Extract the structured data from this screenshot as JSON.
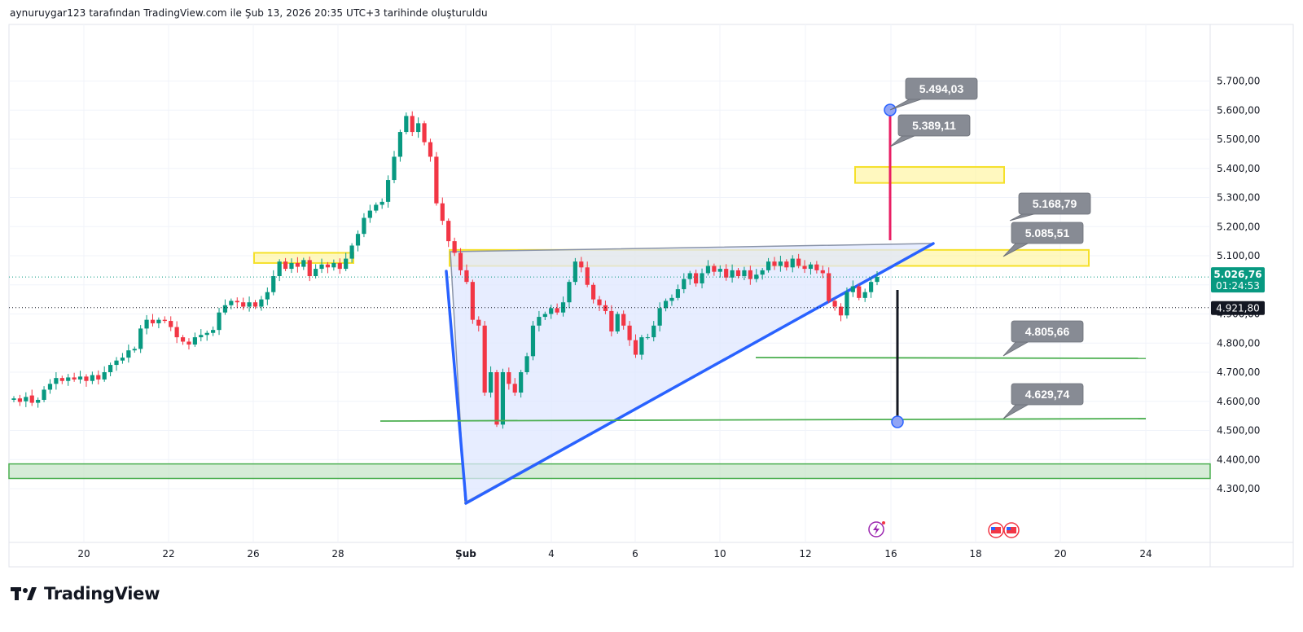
{
  "header": {
    "credit": "aynuruygar123 tarafından TradingView.com ile Şub 13, 2026 20:35 UTC+3 tarihinde oluşturuldu"
  },
  "brand": {
    "name": "TradingView",
    "logo_icon": "tradingview-logo-icon"
  },
  "colors": {
    "up": "#089981",
    "down": "#f23645",
    "trend_blue": "#2962ff",
    "triangle_fill": "#dfe7ff",
    "yellow_zone": "#fff59d",
    "yellow_border": "#f5e02a",
    "green_line": "#4caf50",
    "callout_bg": "#878b94",
    "price_tag": "#089981",
    "prev_close_tag": "#131722",
    "pink_line": "#e91e63"
  },
  "chart_data": {
    "type": "candlestick",
    "title": "",
    "grid": true,
    "x_ticks": [
      "20",
      "22",
      "26",
      "28",
      "Şub",
      "4",
      "6",
      "10",
      "12",
      "16",
      "18",
      "20",
      "24"
    ],
    "y_ticks": [
      "5.700,00",
      "5.600,00",
      "5.500,00",
      "5.400,00",
      "5.300,00",
      "5.200,00",
      "5.100,00",
      "5.000,00",
      "4.900,00",
      "4.800,00",
      "4.700,00",
      "4.600,00",
      "4.500,00",
      "4.400,00",
      "4.300,00"
    ],
    "ylim": [
      4275,
      5750
    ],
    "last_price": {
      "value": 5026.76,
      "label": "5.026,76",
      "countdown": "01:24:53"
    },
    "prev_price": {
      "value": 4921.8,
      "label": "4.921,80"
    },
    "candles_open_close": [
      [
        4605,
        4610
      ],
      [
        4610,
        4598
      ],
      [
        4600,
        4615
      ],
      [
        4620,
        4595
      ],
      [
        4595,
        4605
      ],
      [
        4605,
        4640
      ],
      [
        4640,
        4660
      ],
      [
        4660,
        4680
      ],
      [
        4680,
        4670
      ],
      [
        4670,
        4682
      ],
      [
        4682,
        4675
      ],
      [
        4675,
        4685
      ],
      [
        4685,
        4670
      ],
      [
        4670,
        4690
      ],
      [
        4690,
        4675
      ],
      [
        4675,
        4700
      ],
      [
        4700,
        4725
      ],
      [
        4725,
        4740
      ],
      [
        4740,
        4750
      ],
      [
        4750,
        4775
      ],
      [
        4775,
        4780
      ],
      [
        4780,
        4850
      ],
      [
        4850,
        4880
      ],
      [
        4880,
        4868
      ],
      [
        4868,
        4880
      ],
      [
        4880,
        4876
      ],
      [
        4876,
        4855
      ],
      [
        4855,
        4820
      ],
      [
        4820,
        4805
      ],
      [
        4805,
        4795
      ],
      [
        4795,
        4820
      ],
      [
        4820,
        4828
      ],
      [
        4828,
        4835
      ],
      [
        4835,
        4845
      ],
      [
        4845,
        4905
      ],
      [
        4905,
        4930
      ],
      [
        4930,
        4945
      ],
      [
        4945,
        4940
      ],
      [
        4940,
        4925
      ],
      [
        4925,
        4940
      ],
      [
        4940,
        4925
      ],
      [
        4925,
        4950
      ],
      [
        4950,
        4975
      ],
      [
        4975,
        5030
      ],
      [
        5030,
        5080
      ],
      [
        5080,
        5055
      ],
      [
        5055,
        5075
      ],
      [
        5075,
        5062
      ],
      [
        5062,
        5085
      ],
      [
        5085,
        5030
      ],
      [
        5030,
        5055
      ],
      [
        5055,
        5070
      ],
      [
        5070,
        5060
      ],
      [
        5060,
        5075
      ],
      [
        5075,
        5055
      ],
      [
        5055,
        5090
      ],
      [
        5090,
        5135
      ],
      [
        5135,
        5175
      ],
      [
        5175,
        5230
      ],
      [
        5230,
        5255
      ],
      [
        5255,
        5275
      ],
      [
        5275,
        5285
      ],
      [
        5285,
        5360
      ],
      [
        5360,
        5440
      ],
      [
        5440,
        5525
      ],
      [
        5525,
        5580
      ],
      [
        5580,
        5525
      ],
      [
        5525,
        5555
      ],
      [
        5555,
        5490
      ],
      [
        5490,
        5440
      ],
      [
        5440,
        5280
      ],
      [
        5280,
        5220
      ],
      [
        5220,
        5150
      ],
      [
        5150,
        5110
      ],
      [
        5110,
        5050
      ],
      [
        5050,
        5010
      ],
      [
        5010,
        4880
      ],
      [
        4880,
        4860
      ],
      [
        4860,
        4630
      ],
      [
        4630,
        4700
      ],
      [
        4700,
        4520
      ],
      [
        4520,
        4700
      ],
      [
        4700,
        4660
      ],
      [
        4660,
        4630
      ],
      [
        4630,
        4700
      ],
      [
        4700,
        4755
      ],
      [
        4755,
        4860
      ],
      [
        4860,
        4890
      ],
      [
        4890,
        4900
      ],
      [
        4900,
        4920
      ],
      [
        4920,
        4905
      ],
      [
        4905,
        4940
      ],
      [
        4940,
        5010
      ],
      [
        5010,
        5080
      ],
      [
        5080,
        5060
      ],
      [
        5060,
        5000
      ],
      [
        5000,
        4950
      ],
      [
        4950,
        4930
      ],
      [
        4930,
        4910
      ],
      [
        4910,
        4840
      ],
      [
        4840,
        4900
      ],
      [
        4900,
        4860
      ],
      [
        4860,
        4810
      ],
      [
        4810,
        4760
      ],
      [
        4760,
        4820
      ],
      [
        4820,
        4820
      ],
      [
        4820,
        4860
      ],
      [
        4860,
        4920
      ],
      [
        4920,
        4945
      ],
      [
        4945,
        4955
      ],
      [
        4955,
        4985
      ],
      [
        4985,
        5020
      ],
      [
        5020,
        5040
      ],
      [
        5040,
        5005
      ],
      [
        5005,
        5040
      ],
      [
        5040,
        5065
      ],
      [
        5065,
        5045
      ],
      [
        5045,
        5055
      ],
      [
        5055,
        5025
      ],
      [
        5025,
        5050
      ],
      [
        5050,
        5030
      ],
      [
        5030,
        5050
      ],
      [
        5050,
        5020
      ],
      [
        5020,
        5035
      ],
      [
        5035,
        5050
      ],
      [
        5050,
        5080
      ],
      [
        5080,
        5065
      ],
      [
        5065,
        5080
      ],
      [
        5080,
        5060
      ],
      [
        5060,
        5090
      ],
      [
        5090,
        5065
      ],
      [
        5065,
        5055
      ],
      [
        5055,
        5070
      ],
      [
        5070,
        5050
      ],
      [
        5050,
        5040
      ],
      [
        5040,
        4945
      ],
      [
        4945,
        4925
      ],
      [
        4925,
        4895
      ],
      [
        4895,
        4975
      ],
      [
        4975,
        4995
      ],
      [
        4995,
        4955
      ],
      [
        4955,
        4975
      ],
      [
        4975,
        5010
      ],
      [
        5010,
        5027
      ]
    ],
    "annotations": [
      {
        "label": "5.494,03",
        "value": 5494.03
      },
      {
        "label": "5.389,11",
        "value": 5389.11
      },
      {
        "label": "5.168,79",
        "value": 5168.79
      },
      {
        "label": "5.085,51",
        "value": 5085.51
      },
      {
        "label": "4.805,66",
        "value": 4805.66
      },
      {
        "label": "4.629,74",
        "value": 4629.74
      }
    ],
    "zones": [
      {
        "name": "yellow-zone-left",
        "from": 5075,
        "to": 5110
      },
      {
        "name": "yellow-zone-resistance",
        "from": 5065,
        "to": 5120
      },
      {
        "name": "yellow-zone-target",
        "from": 5350,
        "to": 5405
      },
      {
        "name": "green-support-band",
        "from": 4335,
        "to": 4385
      }
    ]
  }
}
